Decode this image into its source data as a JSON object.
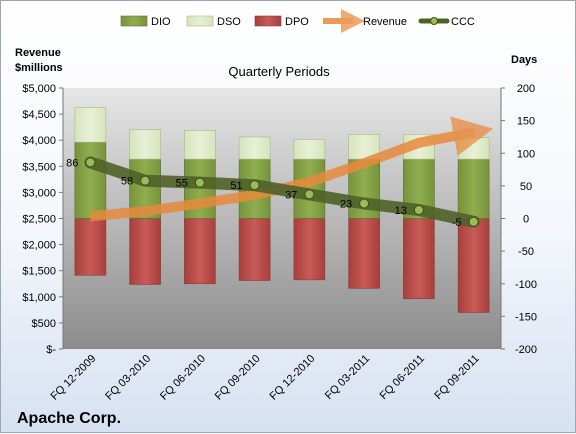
{
  "chart_data": {
    "type": "bar",
    "title": "Quarterly Periods",
    "company": "Apache Corp.",
    "left_axis_label": [
      "Revenue",
      "$millions"
    ],
    "right_axis_label": "Days",
    "left_ticks": [
      "$-",
      "$500",
      "$1,000",
      "$1,500",
      "$2,000",
      "$2,500",
      "$3,000",
      "$3,500",
      "$4,000",
      "$4,500",
      "$5,000"
    ],
    "right_ticks": [
      "-200",
      "-150",
      "-100",
      "-50",
      "0",
      "50",
      "100",
      "150",
      "200"
    ],
    "left_ylim": [
      0,
      5000
    ],
    "right_ylim": [
      -200,
      200
    ],
    "categories": [
      "FQ 12-2009",
      "FQ 03-2010",
      "FQ 06-2010",
      "FQ 09-2010",
      "FQ 12-2010",
      "FQ 03-2011",
      "FQ 06-2011",
      "FQ 09-2011"
    ],
    "series": [
      {
        "name": "DIO",
        "axis": "right",
        "values": [
          117,
          91,
          91,
          91,
          91,
          91,
          91,
          91
        ]
      },
      {
        "name": "DSO",
        "axis": "right",
        "values": [
          53,
          45,
          44,
          34,
          30,
          38,
          38,
          33
        ]
      },
      {
        "name": "DPO",
        "axis": "right",
        "values": [
          -87,
          -101,
          -100,
          -95,
          -94,
          -107,
          -123,
          -144
        ]
      },
      {
        "name": "Revenue",
        "axis": "left",
        "values": [
          2540,
          2640,
          2790,
          2950,
          3200,
          3560,
          3950,
          4150
        ]
      },
      {
        "name": "CCC",
        "axis": "right",
        "values": [
          86,
          58,
          55,
          51,
          37,
          23,
          13,
          -5
        ]
      }
    ],
    "ccc_labels": [
      "86",
      "58",
      "55",
      "51",
      "37",
      "23",
      "13",
      "-5"
    ],
    "legend": [
      "DIO",
      "DSO",
      "DPO",
      "Revenue",
      "CCC"
    ],
    "legend_position": "top",
    "colors": {
      "dio": "#77933c",
      "dso": "#d7e4bd",
      "dpo": "#c0504d",
      "revenue": "#e88a3c",
      "ccc": "#4f6228"
    }
  }
}
